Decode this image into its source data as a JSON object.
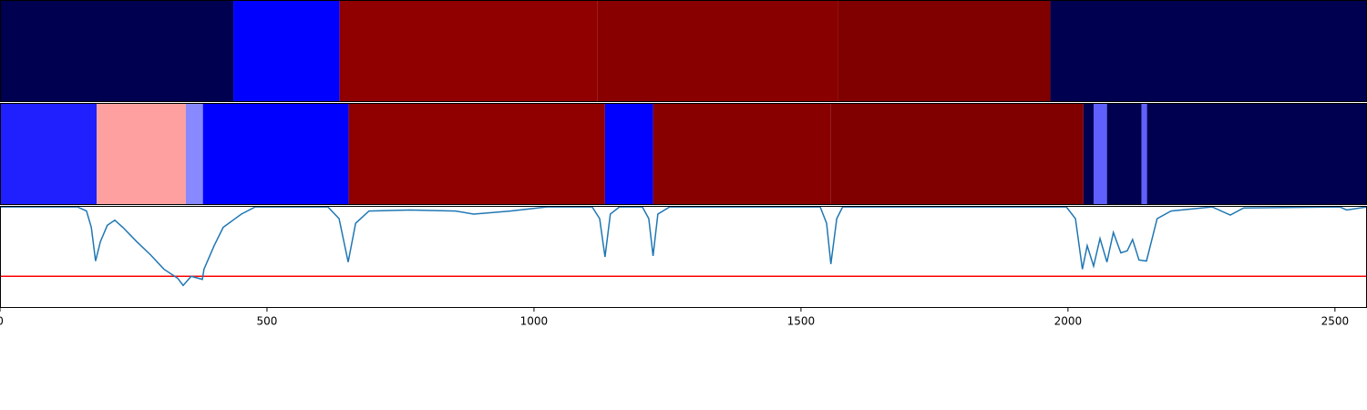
{
  "chart_data": [
    {
      "type": "band",
      "xlim": [
        0,
        2560
      ],
      "edges": [
        0,
        437,
        636,
        1119,
        1570,
        1967,
        2560
      ],
      "colors": [
        "#000050",
        "#0000ff",
        "#900000",
        "#880000",
        "#800000",
        "#000050"
      ]
    },
    {
      "type": "band",
      "xlim": [
        0,
        2560
      ],
      "edges": [
        0,
        181,
        348,
        380,
        653,
        1133,
        1223,
        1556,
        2029,
        2048,
        2073,
        2138,
        2148,
        2560
      ],
      "colors": [
        "#2020ff",
        "#ffa0a0",
        "#8888ff",
        "#0000ff",
        "#900000",
        "#0000ff",
        "#880000",
        "#800000",
        "#000050",
        "#6060ff",
        "#000050",
        "#6060ff",
        "#000050"
      ]
    },
    {
      "type": "line",
      "xlim": [
        0,
        2560
      ],
      "ylim": [
        0,
        1
      ],
      "xticks": [
        0,
        500,
        1000,
        1500,
        2000,
        2500
      ],
      "color": "#1f77b4",
      "hline": 0.31,
      "hline_color": "#ff0000",
      "x": [
        0,
        145,
        162,
        171,
        179,
        188,
        201,
        215,
        230,
        256,
        282,
        307,
        333,
        343,
        358,
        379,
        382,
        401,
        418,
        452,
        478,
        614,
        635,
        652,
        666,
        691,
        768,
        853,
        887,
        956,
        1024,
        1109,
        1123,
        1133,
        1143,
        1160,
        1203,
        1215,
        1223,
        1232,
        1254,
        1536,
        1548,
        1556,
        1567,
        1578,
        1997,
        2014,
        2027,
        2036,
        2048,
        2060,
        2073,
        2085,
        2099,
        2111,
        2121,
        2133,
        2147,
        2167,
        2193,
        2270,
        2304,
        2329,
        2509,
        2522,
        2560
      ],
      "values": [
        0.99,
        0.99,
        0.95,
        0.79,
        0.46,
        0.65,
        0.81,
        0.86,
        0.79,
        0.65,
        0.52,
        0.38,
        0.29,
        0.22,
        0.31,
        0.28,
        0.38,
        0.61,
        0.79,
        0.92,
        0.99,
        0.99,
        0.875,
        0.45,
        0.83,
        0.95,
        0.96,
        0.95,
        0.92,
        0.95,
        0.99,
        0.99,
        0.875,
        0.5,
        0.92,
        0.99,
        0.99,
        0.875,
        0.51,
        0.92,
        0.99,
        0.99,
        0.83,
        0.43,
        0.875,
        0.99,
        0.99,
        0.875,
        0.38,
        0.61,
        0.41,
        0.68,
        0.45,
        0.74,
        0.54,
        0.56,
        0.67,
        0.47,
        0.46,
        0.875,
        0.95,
        0.99,
        0.91,
        0.98,
        0.99,
        0.96,
        0.99
      ]
    }
  ]
}
